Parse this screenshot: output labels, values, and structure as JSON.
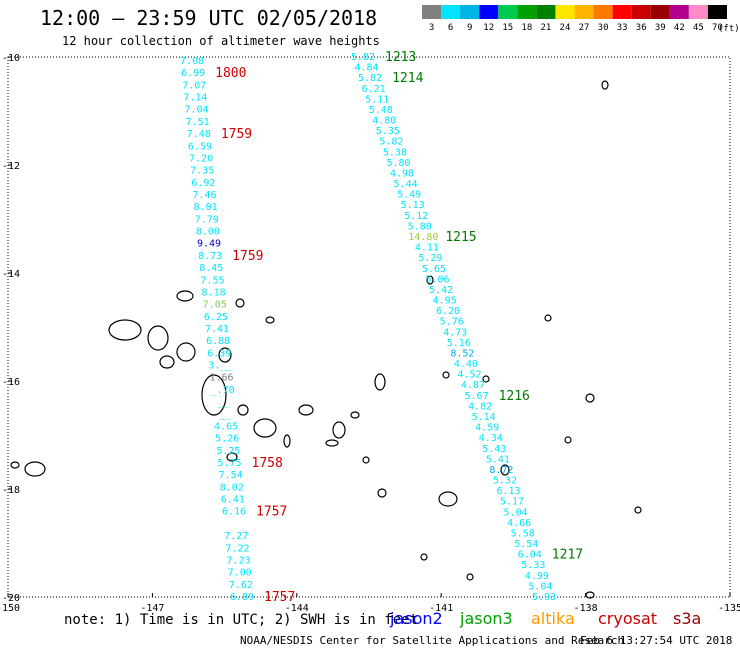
{
  "title": "12:00 – 23:59 UTC 02/05/2018",
  "subtitle": "12 hour collection of altimeter wave heights",
  "note": "note:  1) Time is in UTC;  2) SWH is in feet",
  "credit": "NOAA/NESDIS Center for Satellite Applications and Research",
  "generated": "Feb  6 13:27:54 UTC 2018",
  "colorbar": {
    "unit": "(ft)",
    "ticks": [
      "3",
      "6",
      "9",
      "12",
      "15",
      "18",
      "21",
      "24",
      "27",
      "30",
      "33",
      "36",
      "39",
      "42",
      "45",
      "70"
    ],
    "colors": [
      "#808080",
      "#00e5ff",
      "#00b4e6",
      "#0000ff",
      "#00c850",
      "#00a000",
      "#008000",
      "#ffe600",
      "#ffb400",
      "#ff7800",
      "#ff0000",
      "#c80000",
      "#960000",
      "#b4008c",
      "#ff8cc8",
      "#000000"
    ]
  },
  "satellites": [
    {
      "name": "jason2",
      "color": "#0000ff"
    },
    {
      "name": "jason3",
      "color": "#00a000"
    },
    {
      "name": "altika",
      "color": "#ff9900"
    },
    {
      "name": "cryosat",
      "color": "#cc0000"
    },
    {
      "name": "s3a",
      "color": "#990000"
    }
  ],
  "chart_data": {
    "type": "scatter",
    "xlim": [
      -150,
      -135
    ],
    "ylim": [
      -20,
      -10
    ],
    "x_ticks": [
      -150,
      -147,
      -144,
      -141,
      -138,
      -135
    ],
    "y_ticks": [
      -10,
      -12,
      -14,
      -16,
      -18,
      -20
    ],
    "grid": false,
    "tracks": [
      {
        "color": "#00e5ff",
        "values": [
          "7.08",
          "6.99",
          "7.07",
          "7.14",
          "7.04",
          "7.51",
          "7.48",
          "6.59",
          "7.20",
          "7.35",
          "6.92",
          "7.46",
          "8.01",
          "7.79",
          "8.00",
          "9.49",
          "8.73",
          "8.45",
          "7.55",
          "8.18",
          "7.05",
          "6.25",
          "7.41",
          "6.88",
          "6.39",
          "3.__",
          "1.66",
          "_.70",
          "__",
          "__",
          "4.65",
          "5.26",
          "5.25",
          "5.75",
          "7.54",
          "8.02",
          "6.41",
          "6.16",
          "",
          "7.27",
          "7.22",
          "7.23",
          "7.00",
          "7.62",
          "6.89"
        ],
        "value_colors": {
          "9.49": "#0000cc",
          "7.05": "#7cd04a",
          "1.66": "#808080"
        },
        "time_labels": [
          {
            "text": "1800",
            "index": 1,
            "color": "#cc0000"
          },
          {
            "text": "1759",
            "index": 6,
            "color": "#cc0000"
          },
          {
            "text": "1759",
            "index": 16,
            "color": "#cc0000"
          },
          {
            "text": "1758",
            "index": 33,
            "color": "#cc0000"
          },
          {
            "text": "1757",
            "index": 37,
            "color": "#cc0000"
          },
          {
            "text": "1757",
            "index": 44,
            "color": "#cc0000"
          }
        ]
      },
      {
        "color": "#00e5ff",
        "values": [
          "5.82",
          "4.84",
          "5.82",
          "6.21",
          "5.11",
          "5.48",
          "4.80",
          "5.35",
          "5.82",
          "5.38",
          "5.80",
          "4.98",
          "5.44",
          "5.49",
          "5.13",
          "5.12",
          "5.80",
          "14.80",
          "4.11",
          "5.29",
          "5.65",
          "5.06",
          "5.42",
          "4.95",
          "6.20",
          "5.76",
          "4.73",
          "5.16",
          "8.52",
          "4.40",
          "4.52",
          "4.87",
          "5.67",
          "4.82",
          "5.14",
          "4.59",
          "4.34",
          "5.43",
          "5.41",
          "8.72",
          "5.32",
          "6.13",
          "5.17",
          "5.04",
          "4.66",
          "5.58",
          "5.54",
          "6.04",
          "5.33",
          "4.99",
          "5.04",
          "5.93"
        ],
        "value_colors": {
          "14.80": "#9acd32",
          "8.52": "#00aaee",
          "8.72": "#00aaee"
        },
        "time_labels": [
          {
            "text": "1213",
            "index": 0,
            "color": "#007a00"
          },
          {
            "text": "1214",
            "index": 2,
            "color": "#007a00"
          },
          {
            "text": "1215",
            "index": 17,
            "color": "#007a00"
          },
          {
            "text": "1216",
            "index": 32,
            "color": "#007a00"
          },
          {
            "text": "1217",
            "index": 47,
            "color": "#007a00"
          }
        ]
      }
    ]
  }
}
